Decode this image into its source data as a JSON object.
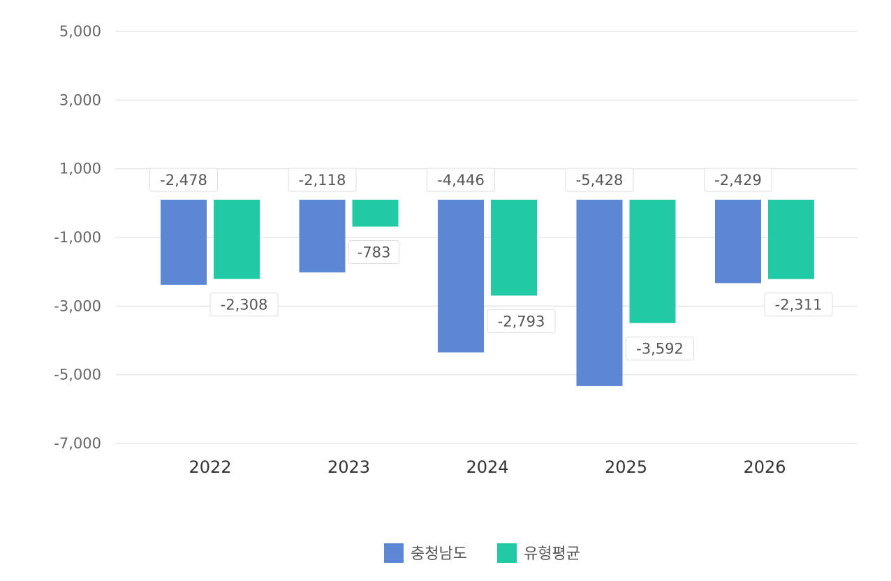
{
  "chart_data": {
    "type": "bar",
    "categories": [
      "2022",
      "2023",
      "2024",
      "2025",
      "2026"
    ],
    "series": [
      {
        "name": "충청남도",
        "color": "#5b87d5",
        "values": [
          -2478,
          -2118,
          -4446,
          -5428,
          -2429
        ]
      },
      {
        "name": "유형평균",
        "color": "#22c9a5",
        "values": [
          -2308,
          -783,
          -2793,
          -3592,
          -2311
        ]
      }
    ],
    "data_labels": [
      [
        "-2,478",
        "-2,118",
        "-4,446",
        "-5,428",
        "-2,429"
      ],
      [
        "-2,308",
        "-783",
        "-2,793",
        "-3,592",
        "-2,311"
      ]
    ],
    "ylim": [
      -7000,
      5000
    ],
    "yticks": [
      5000,
      3000,
      1000,
      -1000,
      -3000,
      -5000,
      -7000
    ],
    "ytick_labels": [
      "5,000",
      "3,000",
      "1,000",
      "-1,000",
      "-3,000",
      "-5,000",
      "-7,000"
    ],
    "grid": true,
    "legend_position": "bottom-center"
  }
}
